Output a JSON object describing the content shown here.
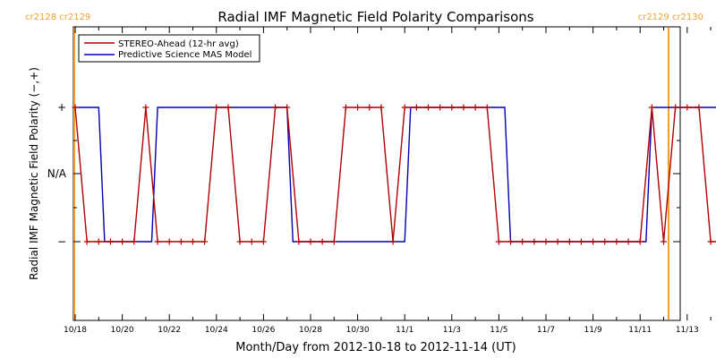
{
  "chart_data": {
    "type": "line",
    "title": "Radial IMF Magnetic Field Polarity Comparisons",
    "xlabel": "Month/Day from 2012-10-18 to 2012-11-14 (UT)",
    "ylabel": "Radial IMF Magnetic Field Polarity (−,+)",
    "x_range": [
      "2012-10-18",
      "2012-11-14"
    ],
    "x_ticks": [
      "10/18",
      "10/20",
      "10/22",
      "10/24",
      "10/26",
      "10/28",
      "10/30",
      "11/1",
      "11/3",
      "11/5",
      "11/7",
      "11/9",
      "11/11",
      "11/13"
    ],
    "y_ticks": [
      "+",
      "N/A",
      "−"
    ],
    "legend_position": "top-left",
    "carrington_markers": [
      {
        "label": "cr2128 cr2129",
        "position": "left",
        "color": "#f0a030"
      },
      {
        "label": "cr2129 cr2130",
        "position": "right",
        "color": "#f0a030"
      }
    ],
    "series": [
      {
        "name": "STEREO-Ahead (12-hr avg)",
        "color": "#b00000",
        "marker": "+",
        "data": [
          [
            "2012-10-18 00:00",
            1
          ],
          [
            "2012-10-18 12:00",
            -1
          ],
          [
            "2012-10-19 00:00",
            -1
          ],
          [
            "2012-10-19 12:00",
            -1
          ],
          [
            "2012-10-20 00:00",
            -1
          ],
          [
            "2012-10-20 12:00",
            -1
          ],
          [
            "2012-10-21 00:00",
            1
          ],
          [
            "2012-10-21 12:00",
            -1
          ],
          [
            "2012-10-22 00:00",
            -1
          ],
          [
            "2012-10-22 12:00",
            -1
          ],
          [
            "2012-10-23 00:00",
            -1
          ],
          [
            "2012-10-23 12:00",
            -1
          ],
          [
            "2012-10-24 00:00",
            1
          ],
          [
            "2012-10-24 12:00",
            1
          ],
          [
            "2012-10-25 00:00",
            -1
          ],
          [
            "2012-10-25 12:00",
            -1
          ],
          [
            "2012-10-26 00:00",
            -1
          ],
          [
            "2012-10-26 12:00",
            1
          ],
          [
            "2012-10-27 00:00",
            1
          ],
          [
            "2012-10-27 12:00",
            -1
          ],
          [
            "2012-10-28 00:00",
            -1
          ],
          [
            "2012-10-28 12:00",
            -1
          ],
          [
            "2012-10-29 00:00",
            -1
          ],
          [
            "2012-10-29 12:00",
            1
          ],
          [
            "2012-10-30 00:00",
            1
          ],
          [
            "2012-10-30 12:00",
            1
          ],
          [
            "2012-10-31 00:00",
            1
          ],
          [
            "2012-10-31 12:00",
            -1
          ],
          [
            "2012-11-01 00:00",
            1
          ],
          [
            "2012-11-01 12:00",
            1
          ],
          [
            "2012-11-02 00:00",
            1
          ],
          [
            "2012-11-02 12:00",
            1
          ],
          [
            "2012-11-03 00:00",
            1
          ],
          [
            "2012-11-03 12:00",
            1
          ],
          [
            "2012-11-04 00:00",
            1
          ],
          [
            "2012-11-04 12:00",
            1
          ],
          [
            "2012-11-05 00:00",
            -1
          ],
          [
            "2012-11-05 12:00",
            -1
          ],
          [
            "2012-11-06 00:00",
            -1
          ],
          [
            "2012-11-06 12:00",
            -1
          ],
          [
            "2012-11-07 00:00",
            -1
          ],
          [
            "2012-11-07 12:00",
            -1
          ],
          [
            "2012-11-08 00:00",
            -1
          ],
          [
            "2012-11-08 12:00",
            -1
          ],
          [
            "2012-11-09 00:00",
            -1
          ],
          [
            "2012-11-09 12:00",
            -1
          ],
          [
            "2012-11-10 00:00",
            -1
          ],
          [
            "2012-11-10 12:00",
            -1
          ],
          [
            "2012-11-11 00:00",
            -1
          ],
          [
            "2012-11-11 12:00",
            1
          ],
          [
            "2012-11-12 00:00",
            -1
          ],
          [
            "2012-11-12 12:00",
            1
          ],
          [
            "2012-11-13 00:00",
            1
          ],
          [
            "2012-11-13 12:00",
            1
          ],
          [
            "2012-11-14 00:00",
            -1
          ],
          [
            "2012-11-14 12:00",
            -1
          ]
        ]
      },
      {
        "name": "Predictive Science MAS Model",
        "color": "#0000b0",
        "data": [
          [
            "2012-10-18 00:00",
            1
          ],
          [
            "2012-10-19 00:00",
            1
          ],
          [
            "2012-10-19 06:00",
            -1
          ],
          [
            "2012-10-21 06:00",
            -1
          ],
          [
            "2012-10-21 12:00",
            1
          ],
          [
            "2012-10-27 00:00",
            1
          ],
          [
            "2012-10-27 06:00",
            -1
          ],
          [
            "2012-11-01 00:00",
            -1
          ],
          [
            "2012-11-01 06:00",
            1
          ],
          [
            "2012-11-05 06:00",
            1
          ],
          [
            "2012-11-05 12:00",
            -1
          ],
          [
            "2012-11-11 06:00",
            -1
          ],
          [
            "2012-11-11 12:00",
            1
          ],
          [
            "2012-11-14 12:00",
            1
          ]
        ]
      }
    ]
  }
}
